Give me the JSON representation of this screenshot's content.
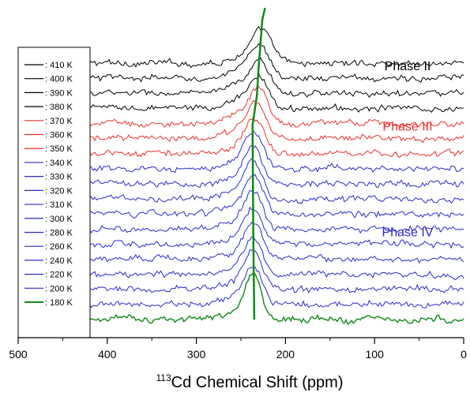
{
  "chart_data": {
    "type": "line",
    "title": "",
    "xlabel_superscript": "113",
    "xlabel_main": "Cd Chemical Shift (ppm)",
    "ylabel": "",
    "xlim": [
      500,
      0
    ],
    "x_ticks": [
      500,
      400,
      300,
      200,
      100,
      0
    ],
    "x_tick_labels": [
      "500",
      "400",
      "300",
      "200",
      "100",
      "0"
    ],
    "x_range": [
      420,
      0
    ],
    "grid": false,
    "legend_placement": "left",
    "peak_position": 236,
    "phase_labels": [
      {
        "text": "Phase II",
        "color": "#000000",
        "near_series": 1
      },
      {
        "text": "Phase III",
        "color": "#e8302e",
        "near_series": 5
      },
      {
        "text": "Phase IV",
        "color": "#2a2ac8",
        "near_series": 12
      }
    ],
    "guide_line": {
      "color": "#0e8a16",
      "points": [
        [
          235,
          180
        ],
        [
          236,
          220
        ],
        [
          237,
          340
        ],
        [
          232,
          360
        ],
        [
          230,
          380
        ],
        [
          226,
          410
        ]
      ]
    },
    "series": [
      {
        "name": ": 410 K",
        "temperature": 410,
        "color": "#000000",
        "phase": "II",
        "peak_center": 226,
        "peak_height": 0.55,
        "peak_width": 16
      },
      {
        "name": ": 400 K",
        "temperature": 400,
        "color": "#000000",
        "phase": "II",
        "peak_center": 228,
        "peak_height": 0.55,
        "peak_width": 16
      },
      {
        "name": ": 390 K",
        "temperature": 390,
        "color": "#000000",
        "phase": "II",
        "peak_center": 229,
        "peak_height": 0.55,
        "peak_width": 16
      },
      {
        "name": ": 380 K",
        "temperature": 380,
        "color": "#000000",
        "phase": "II",
        "peak_center": 230,
        "peak_height": 0.55,
        "peak_width": 16
      },
      {
        "name": ": 370 K",
        "temperature": 370,
        "color": "#e8302e",
        "phase": "III",
        "peak_center": 231,
        "peak_height": 0.6,
        "peak_width": 15
      },
      {
        "name": ": 360 K",
        "temperature": 360,
        "color": "#e8302e",
        "phase": "III",
        "peak_center": 233,
        "peak_height": 0.6,
        "peak_width": 15
      },
      {
        "name": ": 350 K",
        "temperature": 350,
        "color": "#e8302e",
        "phase": "III",
        "peak_center": 234,
        "peak_height": 0.6,
        "peak_width": 15
      },
      {
        "name": ": 340 K",
        "temperature": 340,
        "color": "#2a2ac8",
        "phase": "IV",
        "peak_center": 236,
        "peak_height": 0.65,
        "peak_width": 14
      },
      {
        "name": ": 330 K",
        "temperature": 330,
        "color": "#2a2ac8",
        "phase": "IV",
        "peak_center": 236,
        "peak_height": 0.65,
        "peak_width": 14
      },
      {
        "name": ": 320 K",
        "temperature": 320,
        "color": "#2a2ac8",
        "phase": "IV",
        "peak_center": 236,
        "peak_height": 0.65,
        "peak_width": 14
      },
      {
        "name": ": 310 K",
        "temperature": 310,
        "color": "#2a2ac8",
        "phase": "IV",
        "peak_center": 236,
        "peak_height": 0.65,
        "peak_width": 14
      },
      {
        "name": ": 300 K",
        "temperature": 300,
        "color": "#2a2ac8",
        "phase": "IV",
        "peak_center": 236,
        "peak_height": 0.65,
        "peak_width": 14
      },
      {
        "name": ": 280 K",
        "temperature": 280,
        "color": "#2a2ac8",
        "phase": "IV",
        "peak_center": 236,
        "peak_height": 0.65,
        "peak_width": 14
      },
      {
        "name": ": 260 K",
        "temperature": 260,
        "color": "#2a2ac8",
        "phase": "IV",
        "peak_center": 236,
        "peak_height": 0.65,
        "peak_width": 14
      },
      {
        "name": ": 240 K",
        "temperature": 240,
        "color": "#2a2ac8",
        "phase": "IV",
        "peak_center": 236,
        "peak_height": 0.65,
        "peak_width": 14
      },
      {
        "name": ": 220 K",
        "temperature": 220,
        "color": "#2a2ac8",
        "phase": "IV",
        "peak_center": 236,
        "peak_height": 0.65,
        "peak_width": 14
      },
      {
        "name": ": 200 K",
        "temperature": 200,
        "color": "#2a2ac8",
        "phase": "IV",
        "peak_center": 236,
        "peak_height": 0.65,
        "peak_width": 14
      },
      {
        "name": ": 180 K",
        "temperature": 180,
        "color": "#0e8a16",
        "phase": "IV",
        "peak_center": 236,
        "peak_height": 0.85,
        "peak_width": 12
      }
    ]
  }
}
